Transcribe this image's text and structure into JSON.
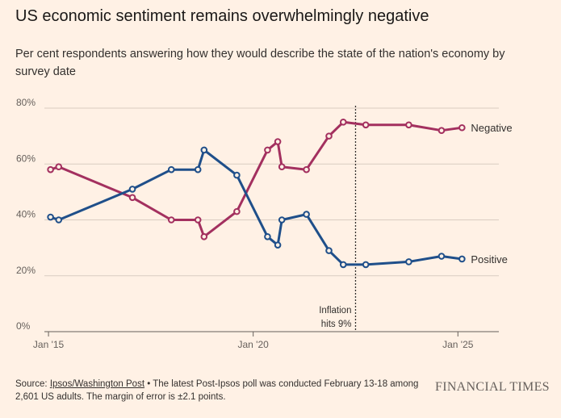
{
  "title": "US economic sentiment remains overwhelmingly negative",
  "subtitle": "Per cent respondents answering how they would describe the state of the nation's economy by survey date",
  "footer": {
    "source_label": "Source: ",
    "source_link": "Ipsos/Washington Post",
    "note": " • The latest Post-Ipsos poll was conducted February 13-18 among 2,601 US adults. The margin of error is ±2.1 points.",
    "logo": "FINANCIAL TIMES"
  },
  "colors": {
    "background": "#FFF1E5",
    "positive": "#1F4F8A",
    "negative": "#A3305F",
    "grid": "#D9CCC1",
    "axis": "#66605C"
  },
  "chart_data": {
    "type": "line",
    "ylim": [
      0,
      80
    ],
    "xlim": [
      2014.9,
      2026.0
    ],
    "y_ticks": [
      {
        "value": 0,
        "label": "0%"
      },
      {
        "value": 20,
        "label": "20%"
      },
      {
        "value": 40,
        "label": "40%"
      },
      {
        "value": 60,
        "label": "60%"
      },
      {
        "value": 80,
        "label": "80%"
      }
    ],
    "x_ticks": [
      {
        "value": 2015.0,
        "label": "Jan '15"
      },
      {
        "value": 2020.0,
        "label": "Jan '20"
      },
      {
        "value": 2025.0,
        "label": "Jan '25"
      }
    ],
    "series": [
      {
        "name": "Negative",
        "color": "#A3305F",
        "points": [
          [
            2015.05,
            58
          ],
          [
            2015.25,
            59
          ],
          [
            2017.05,
            48
          ],
          [
            2018.0,
            40
          ],
          [
            2018.65,
            40
          ],
          [
            2018.8,
            34
          ],
          [
            2019.6,
            43
          ],
          [
            2020.35,
            65
          ],
          [
            2020.6,
            68
          ],
          [
            2020.7,
            59
          ],
          [
            2021.3,
            58
          ],
          [
            2021.85,
            70
          ],
          [
            2022.2,
            75
          ],
          [
            2022.75,
            74
          ],
          [
            2023.8,
            74
          ],
          [
            2024.6,
            72
          ],
          [
            2025.1,
            73
          ]
        ]
      },
      {
        "name": "Positive",
        "color": "#1F4F8A",
        "points": [
          [
            2015.05,
            41
          ],
          [
            2015.25,
            40
          ],
          [
            2017.05,
            51
          ],
          [
            2018.0,
            58
          ],
          [
            2018.65,
            58
          ],
          [
            2018.8,
            65
          ],
          [
            2019.6,
            56
          ],
          [
            2020.35,
            34
          ],
          [
            2020.6,
            31
          ],
          [
            2020.7,
            40
          ],
          [
            2021.3,
            42
          ],
          [
            2021.85,
            29
          ],
          [
            2022.2,
            24
          ],
          [
            2022.75,
            24
          ],
          [
            2023.8,
            25
          ],
          [
            2024.6,
            27
          ],
          [
            2025.1,
            26
          ]
        ]
      }
    ],
    "annotations": [
      {
        "x": 2022.5,
        "line1": "Inflation",
        "line2": "hits 9%"
      }
    ]
  }
}
